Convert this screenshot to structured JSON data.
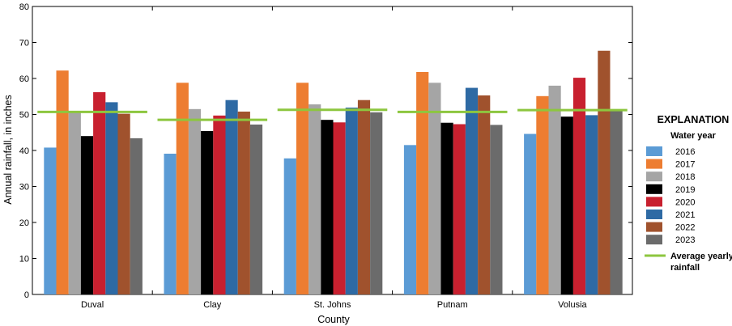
{
  "chart_data": {
    "type": "bar",
    "xlabel": "County",
    "ylabel": "Annual rainfall, in inches",
    "ylim": [
      0,
      80
    ],
    "yticks": [
      0,
      10,
      20,
      30,
      40,
      50,
      60,
      70,
      80
    ],
    "categories": [
      "Duval",
      "Clay",
      "St. Johns",
      "Putnam",
      "Volusia"
    ],
    "series": [
      {
        "name": "2016",
        "color": "#5b9bd5",
        "values": [
          40.8,
          39.1,
          37.8,
          41.5,
          44.6
        ]
      },
      {
        "name": "2017",
        "color": "#ed7d31",
        "values": [
          62.2,
          58.8,
          58.8,
          61.8,
          55.1
        ]
      },
      {
        "name": "2018",
        "color": "#a5a5a5",
        "values": [
          50.6,
          51.5,
          52.8,
          58.8,
          58.0
        ]
      },
      {
        "name": "2019",
        "color": "#000000",
        "values": [
          44.0,
          45.4,
          48.5,
          47.7,
          49.4
        ]
      },
      {
        "name": "2020",
        "color": "#c8202f",
        "values": [
          56.2,
          49.7,
          47.8,
          47.3,
          60.2
        ]
      },
      {
        "name": "2021",
        "color": "#2e6aa4",
        "values": [
          53.4,
          54.0,
          51.9,
          57.4,
          49.8
        ]
      },
      {
        "name": "2022",
        "color": "#a0522d",
        "values": [
          50.2,
          50.8,
          54.0,
          55.3,
          67.7
        ]
      },
      {
        "name": "2023",
        "color": "#6b6b6b",
        "values": [
          43.4,
          47.2,
          50.6,
          47.1,
          51.4
        ]
      }
    ],
    "average": {
      "name": "Average yearly rainfall",
      "color": "#8dc63f",
      "values": [
        50.7,
        48.5,
        51.3,
        50.7,
        51.2
      ]
    },
    "legend": {
      "title": "EXPLANATION",
      "subtitle": "Water year",
      "average_label_line1": "Average yearly",
      "average_label_line2": "rainfall",
      "placement": "right"
    },
    "grid": false
  }
}
